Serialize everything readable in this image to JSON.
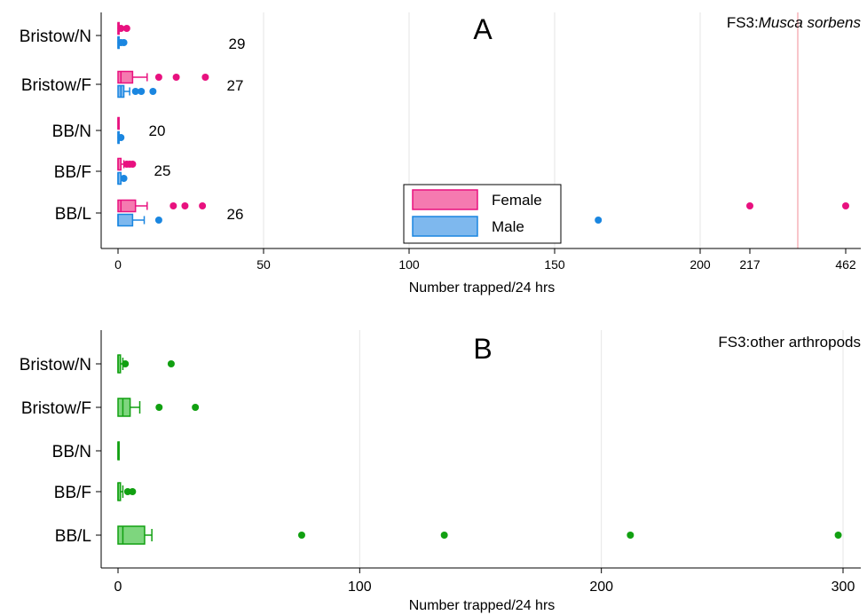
{
  "chart_data": [
    {
      "type": "box",
      "panel_letter": "A",
      "title_prefix": "FS3:",
      "title_italic": "Musca sorbens",
      "xlabel": "Number trapped/24 hrs",
      "categories": [
        "Bristow/N",
        "Bristow/F",
        "BB/N",
        "BB/F",
        "BB/L"
      ],
      "sample_sizes": [
        "29",
        "27",
        "20",
        "25",
        "26"
      ],
      "x_axis_break": {
        "after": 200,
        "break_value": 217,
        "end_value": 462,
        "reference_line_between": true
      },
      "xticks": [
        0,
        50,
        100,
        150,
        200,
        217,
        462
      ],
      "xlim": [
        0,
        462
      ],
      "legend": {
        "placement": "bottom-center"
      },
      "series": [
        {
          "name": "Female",
          "fill": "#f57ab0",
          "stroke": "#e8117f",
          "boxes": [
            {
              "category": "Bristow/N",
              "min": 0,
              "q1": 0,
              "median": 0,
              "q3": 0,
              "max": 0,
              "outliers": [
                1,
                3
              ]
            },
            {
              "category": "Bristow/F",
              "min": 0,
              "q1": 0,
              "median": 1,
              "q3": 5,
              "max": 10,
              "outliers": [
                14,
                20,
                30
              ]
            },
            {
              "category": "BB/N",
              "min": 0,
              "q1": 0,
              "median": 0,
              "q3": 0,
              "max": 0,
              "outliers": []
            },
            {
              "category": "BB/F",
              "min": 0,
              "q1": 0,
              "median": 0,
              "q3": 1,
              "max": 2,
              "outliers": [
                3,
                4,
                5
              ]
            },
            {
              "category": "BB/L",
              "min": 0,
              "q1": 0,
              "median": 1,
              "q3": 6,
              "max": 10,
              "outliers": [
                19,
                23,
                29,
                217,
                462
              ]
            }
          ]
        },
        {
          "name": "Male",
          "fill": "#7eb8ee",
          "stroke": "#1a86e0",
          "boxes": [
            {
              "category": "Bristow/N",
              "min": 0,
              "q1": 0,
              "median": 0,
              "q3": 0,
              "max": 0,
              "outliers": [
                1,
                2
              ]
            },
            {
              "category": "Bristow/F",
              "min": 0,
              "q1": 0,
              "median": 1,
              "q3": 2,
              "max": 4,
              "outliers": [
                6,
                8,
                12
              ]
            },
            {
              "category": "BB/N",
              "min": 0,
              "q1": 0,
              "median": 0,
              "q3": 0,
              "max": 0,
              "outliers": [
                1
              ]
            },
            {
              "category": "BB/F",
              "min": 0,
              "q1": 0,
              "median": 0,
              "q3": 1,
              "max": 1,
              "outliers": [
                2
              ]
            },
            {
              "category": "BB/L",
              "min": 0,
              "q1": 0,
              "median": 0,
              "q3": 5,
              "max": 9,
              "outliers": [
                14,
                165
              ]
            }
          ]
        }
      ]
    },
    {
      "type": "box",
      "panel_letter": "B",
      "title": "FS3:other arthropods",
      "xlabel": "Number trapped/24 hrs",
      "categories": [
        "Bristow/N",
        "Bristow/F",
        "BB/N",
        "BB/F",
        "BB/L"
      ],
      "xticks": [
        0,
        100,
        200,
        300
      ],
      "xlim": [
        0,
        300
      ],
      "series": [
        {
          "fill": "#7ed67e",
          "stroke": "#11a011",
          "boxes": [
            {
              "category": "Bristow/N",
              "min": 0,
              "q1": 0,
              "median": 0,
              "q3": 1,
              "max": 2,
              "outliers": [
                3,
                22
              ]
            },
            {
              "category": "Bristow/F",
              "min": 0,
              "q1": 0,
              "median": 2,
              "q3": 5,
              "max": 9,
              "outliers": [
                17,
                32
              ]
            },
            {
              "category": "BB/N",
              "min": 0,
              "q1": 0,
              "median": 0,
              "q3": 0,
              "max": 0,
              "outliers": []
            },
            {
              "category": "BB/F",
              "min": 0,
              "q1": 0,
              "median": 0,
              "q3": 1,
              "max": 2,
              "outliers": [
                4,
                6
              ]
            },
            {
              "category": "BB/L",
              "min": 0,
              "q1": 0,
              "median": 2,
              "q3": 11,
              "max": 14,
              "outliers": [
                76,
                135,
                212,
                298
              ]
            }
          ]
        }
      ]
    }
  ]
}
